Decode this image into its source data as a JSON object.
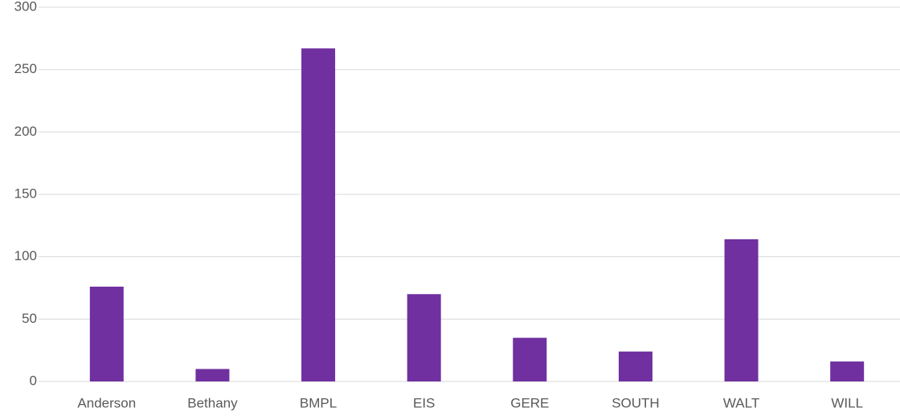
{
  "chart_data": {
    "type": "bar",
    "categories": [
      "Anderson",
      "Bethany",
      "BMPL",
      "EIS",
      "GERE",
      "SOUTH",
      "WALT",
      "WILL"
    ],
    "values": [
      76,
      10,
      267,
      70,
      35,
      24,
      114,
      16
    ],
    "color": "#7030a0",
    "ylim": [
      0,
      300
    ],
    "yticks": [
      0,
      50,
      100,
      150,
      200,
      250,
      300
    ],
    "grid": true
  }
}
